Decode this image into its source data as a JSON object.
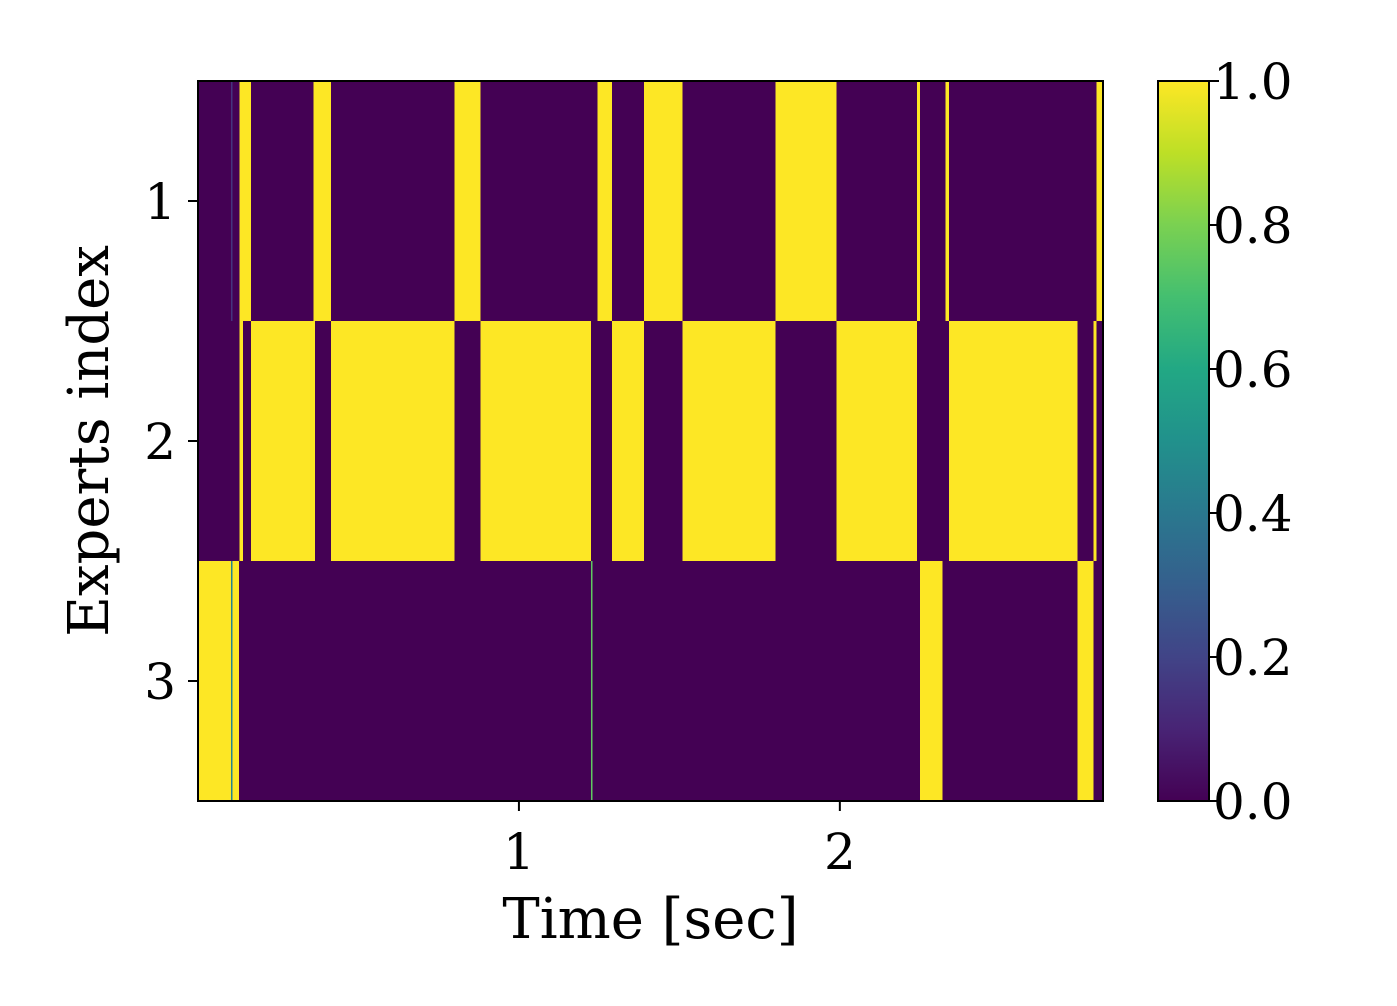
{
  "chart_data": {
    "type": "heatmap",
    "title": "",
    "xlabel": "Time [sec]",
    "ylabel": "Experts index",
    "xlim": [
      0,
      2.82
    ],
    "xticks": [
      1,
      2
    ],
    "xtick_labels": [
      "1",
      "2"
    ],
    "y_categories": [
      1,
      2,
      3
    ],
    "ytick_labels": [
      "1",
      "2",
      "3"
    ],
    "colormap": "viridis",
    "colorbar": {
      "vmin": 0.0,
      "vmax": 1.0,
      "ticks": [
        0.0,
        0.2,
        0.4,
        0.6,
        0.8,
        1.0
      ],
      "tick_labels": [
        "0.0",
        "0.2",
        "0.4",
        "0.6",
        "0.8",
        "1.0"
      ]
    },
    "cell_width_sec": 0.0085,
    "nonzero_segments": [
      {
        "expert": 1,
        "start": 0.103,
        "end": 0.106,
        "value": 0.15
      },
      {
        "expert": 1,
        "start": 0.13,
        "end": 0.165,
        "value": 1.0
      },
      {
        "expert": 1,
        "start": 0.36,
        "end": 0.415,
        "value": 1.0
      },
      {
        "expert": 1,
        "start": 0.8,
        "end": 0.88,
        "value": 1.0
      },
      {
        "expert": 1,
        "start": 1.245,
        "end": 1.29,
        "value": 1.0
      },
      {
        "expert": 1,
        "start": 1.39,
        "end": 1.51,
        "value": 1.0
      },
      {
        "expert": 1,
        "start": 1.8,
        "end": 1.99,
        "value": 1.0
      },
      {
        "expert": 1,
        "start": 2.24,
        "end": 2.25,
        "value": 1.0
      },
      {
        "expert": 1,
        "start": 2.33,
        "end": 2.34,
        "value": 1.0
      },
      {
        "expert": 1,
        "start": 2.8,
        "end": 2.82,
        "value": 1.0
      },
      {
        "expert": 2,
        "start": 0.13,
        "end": 0.14,
        "value": 1.0
      },
      {
        "expert": 2,
        "start": 0.165,
        "end": 0.365,
        "value": 1.0
      },
      {
        "expert": 2,
        "start": 0.415,
        "end": 0.8,
        "value": 1.0
      },
      {
        "expert": 2,
        "start": 0.88,
        "end": 1.225,
        "value": 1.0
      },
      {
        "expert": 2,
        "start": 1.29,
        "end": 1.39,
        "value": 1.0
      },
      {
        "expert": 2,
        "start": 1.51,
        "end": 1.8,
        "value": 1.0
      },
      {
        "expert": 2,
        "start": 1.99,
        "end": 2.24,
        "value": 1.0
      },
      {
        "expert": 2,
        "start": 2.34,
        "end": 2.74,
        "value": 1.0
      },
      {
        "expert": 2,
        "start": 2.79,
        "end": 2.8,
        "value": 1.0
      },
      {
        "expert": 3,
        "start": 0.0,
        "end": 0.103,
        "value": 1.0
      },
      {
        "expert": 3,
        "start": 0.103,
        "end": 0.108,
        "value": 0.45
      },
      {
        "expert": 3,
        "start": 0.108,
        "end": 0.128,
        "value": 1.0
      },
      {
        "expert": 3,
        "start": 1.225,
        "end": 1.23,
        "value": 0.75
      },
      {
        "expert": 3,
        "start": 2.25,
        "end": 2.32,
        "value": 1.0
      },
      {
        "expert": 3,
        "start": 2.74,
        "end": 2.79,
        "value": 1.0
      }
    ]
  }
}
